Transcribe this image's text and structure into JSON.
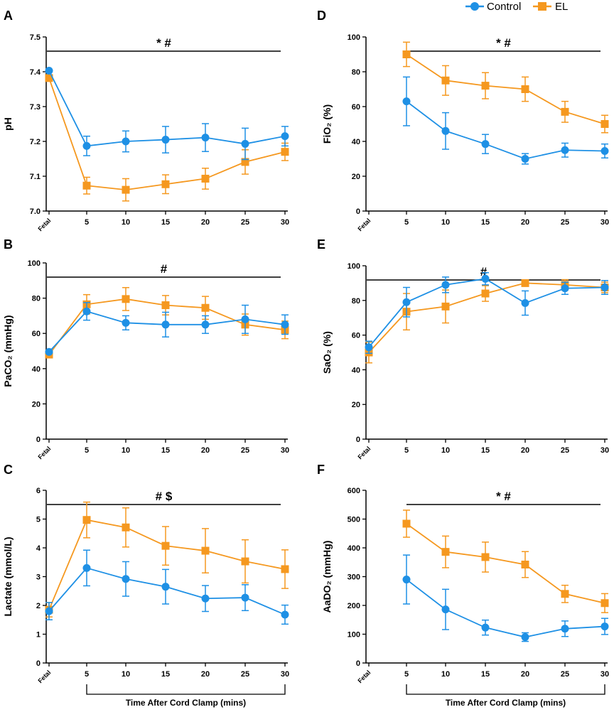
{
  "legend": {
    "control": "Control",
    "el": "EL",
    "control_color": "#1E90E5",
    "el_color": "#F5981F"
  },
  "x_axis_title": "Time After Cord Clamp (mins)",
  "chart_data": [
    {
      "type": "line",
      "panel": "A",
      "categories": [
        "Fetal",
        "5",
        "10",
        "15",
        "20",
        "25",
        "30"
      ],
      "ylabel": "pH",
      "ylim": [
        7.0,
        7.5
      ],
      "yticks": [
        "7.0",
        "7.1",
        "7.2",
        "7.3",
        "7.4",
        "7.5"
      ],
      "significance": "*   #",
      "sig_span": "Fetal-30",
      "series": [
        {
          "name": "Control",
          "values": [
            7.403,
            7.187,
            7.2,
            7.205,
            7.211,
            7.193,
            7.215
          ],
          "errors": [
            0,
            0.028,
            0.03,
            0.038,
            0.04,
            0.045,
            0.028
          ]
        },
        {
          "name": "EL",
          "values": [
            7.382,
            7.073,
            7.061,
            7.077,
            7.093,
            7.141,
            7.17
          ],
          "errors": [
            0,
            0.024,
            0.032,
            0.027,
            0.03,
            0.035,
            0.025
          ]
        }
      ]
    },
    {
      "type": "line",
      "panel": "B",
      "categories": [
        "Fetal",
        "5",
        "10",
        "15",
        "20",
        "25",
        "30"
      ],
      "ylabel": "PaCO₂ (mmHg)",
      "ylim": [
        0,
        100
      ],
      "yticks": [
        "0",
        "20",
        "40",
        "60",
        "80",
        "100"
      ],
      "significance": "#",
      "sig_span": "Fetal-30",
      "series": [
        {
          "name": "Control",
          "values": [
            49.5,
            72.5,
            66,
            65,
            65,
            68,
            65
          ],
          "errors": [
            0,
            5,
            4,
            7,
            5,
            8,
            5.5
          ]
        },
        {
          "name": "EL",
          "values": [
            48,
            76.5,
            79.5,
            76,
            74.5,
            65,
            62
          ],
          "errors": [
            0,
            5.5,
            6.5,
            5.5,
            6.5,
            6,
            5
          ]
        }
      ]
    },
    {
      "type": "line",
      "panel": "C",
      "categories": [
        "Fetal",
        "5",
        "10",
        "15",
        "20",
        "25",
        "30"
      ],
      "ylabel": "Lactate (mmol/L)",
      "ylim": [
        0,
        6
      ],
      "yticks": [
        "0",
        "1",
        "2",
        "3",
        "4",
        "5",
        "6"
      ],
      "significance": "#   $",
      "sig_span": "Fetal-30",
      "series": [
        {
          "name": "Control",
          "values": [
            1.8,
            3.3,
            2.92,
            2.65,
            2.24,
            2.27,
            1.68
          ],
          "errors": [
            0.3,
            0.62,
            0.6,
            0.6,
            0.45,
            0.45,
            0.33
          ]
        },
        {
          "name": "EL",
          "values": [
            1.85,
            4.97,
            4.71,
            4.07,
            3.9,
            3.53,
            3.26
          ],
          "errors": [
            0.25,
            0.62,
            0.68,
            0.67,
            0.77,
            0.75,
            0.67
          ]
        }
      ]
    },
    {
      "type": "line",
      "panel": "D",
      "categories": [
        "Fetal",
        "5",
        "10",
        "15",
        "20",
        "25",
        "30"
      ],
      "ylabel": "FiO₂ (%)",
      "ylim": [
        0,
        100
      ],
      "yticks": [
        "0",
        "20",
        "40",
        "60",
        "80",
        "100"
      ],
      "significance": "*   #",
      "sig_span": "5-30",
      "series": [
        {
          "name": "Control",
          "values": [
            null,
            63,
            46,
            38.5,
            30,
            35,
            34.5
          ],
          "errors": [
            0,
            14,
            10.5,
            5.5,
            3,
            4,
            4
          ]
        },
        {
          "name": "EL",
          "values": [
            null,
            90,
            75,
            72,
            70,
            57,
            50
          ],
          "errors": [
            0,
            7,
            8.5,
            7.5,
            7,
            6,
            5
          ]
        }
      ]
    },
    {
      "type": "line",
      "panel": "E",
      "categories": [
        "Fetal",
        "5",
        "10",
        "15",
        "20",
        "25",
        "30"
      ],
      "ylabel": "SaO₂ (%)",
      "ylim": [
        0,
        100
      ],
      "yticks": [
        "0",
        "20",
        "40",
        "60",
        "80",
        "100"
      ],
      "significance": "#",
      "sig_span": "Fetal-30",
      "series": [
        {
          "name": "Control",
          "values": [
            53,
            79,
            89,
            92.5,
            78.5,
            87,
            87.5
          ],
          "errors": [
            3.5,
            8.5,
            4.5,
            3.5,
            7,
            3.5,
            4
          ]
        },
        {
          "name": "EL",
          "values": [
            50,
            73.5,
            76.5,
            84,
            90,
            89,
            87.5
          ],
          "errors": [
            6,
            10.5,
            9.5,
            4.5,
            0,
            3,
            3
          ]
        }
      ]
    },
    {
      "type": "line",
      "panel": "F",
      "categories": [
        "Fetal",
        "5",
        "10",
        "15",
        "20",
        "25",
        "30"
      ],
      "ylabel": "AaDO₂ (mmHg)",
      "ylim": [
        0,
        600
      ],
      "yticks": [
        "0",
        "100",
        "200",
        "300",
        "400",
        "500",
        "600"
      ],
      "significance": "*   #",
      "sig_span": "5-30",
      "series": [
        {
          "name": "Control",
          "values": [
            null,
            290,
            186,
            123,
            90,
            119,
            127
          ],
          "errors": [
            0,
            85,
            70,
            26,
            15,
            27,
            28
          ]
        },
        {
          "name": "EL",
          "values": [
            null,
            484,
            386,
            368,
            342,
            240,
            208
          ],
          "errors": [
            0,
            47,
            55,
            52,
            45,
            30,
            33
          ]
        }
      ]
    }
  ]
}
